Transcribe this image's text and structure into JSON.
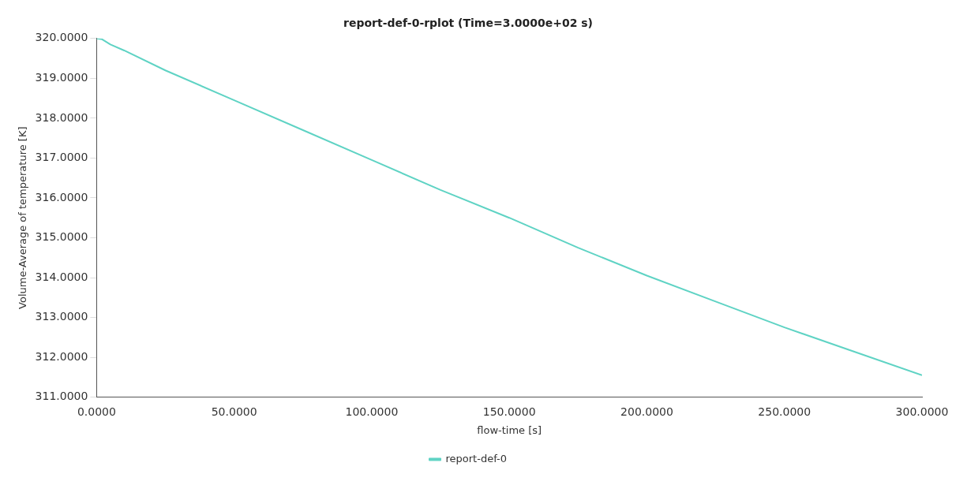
{
  "chart_data": {
    "type": "line",
    "title": "report-def-0-rplot (Time=3.0000e+02 s)",
    "xlabel": "flow-time [s]",
    "ylabel": "Volume-Average of temperature [K]",
    "x": [
      0,
      2,
      5,
      10,
      25,
      50,
      75,
      100,
      125,
      150,
      175,
      200,
      225,
      250,
      275,
      300
    ],
    "series": [
      {
        "name": "report-def-0",
        "color": "#5fd3c4",
        "values": [
          320,
          319.98,
          319.85,
          319.7,
          319.2,
          318.45,
          317.7,
          316.95,
          316.2,
          315.5,
          314.75,
          314.05,
          313.4,
          312.75,
          312.15,
          311.55
        ]
      }
    ],
    "xlim": [
      0,
      300
    ],
    "xticks": [
      {
        "value": 0,
        "label": "0.0000"
      },
      {
        "value": 50,
        "label": "50.0000"
      },
      {
        "value": 100,
        "label": "100.0000"
      },
      {
        "value": 150,
        "label": "150.0000"
      },
      {
        "value": 200,
        "label": "200.0000"
      },
      {
        "value": 250,
        "label": "250.0000"
      },
      {
        "value": 300,
        "label": "300.0000"
      }
    ],
    "ylim": [
      311,
      320
    ],
    "yticks": [
      {
        "value": 311,
        "label": "311.0000"
      },
      {
        "value": 312,
        "label": "312.0000"
      },
      {
        "value": 313,
        "label": "313.0000"
      },
      {
        "value": 314,
        "label": "314.0000"
      },
      {
        "value": 315,
        "label": "315.0000"
      },
      {
        "value": 316,
        "label": "316.0000"
      },
      {
        "value": 317,
        "label": "317.0000"
      },
      {
        "value": 318,
        "label": "318.0000"
      },
      {
        "value": 319,
        "label": "319.0000"
      },
      {
        "value": 320,
        "label": "320.0000"
      }
    ],
    "grid": false,
    "legend": "bottom",
    "marker": "none",
    "line_style": "solid"
  }
}
